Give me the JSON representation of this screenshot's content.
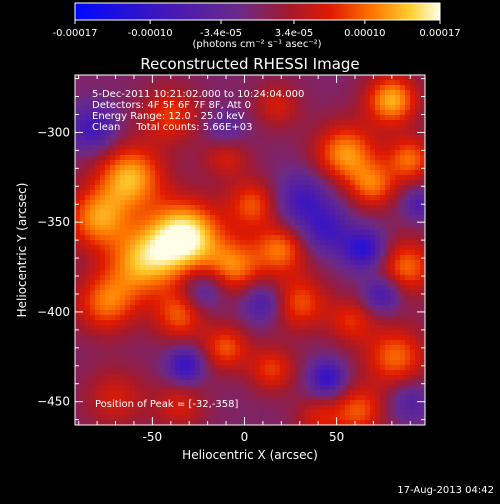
{
  "chart_data": {
    "type": "heatmap",
    "title": "Reconstructed RHESSI Image",
    "xlabel": "Heliocentric X (arcsec)",
    "ylabel": "Heliocentric Y (arcsec)",
    "xlim": [
      -92,
      98
    ],
    "ylim": [
      -463,
      -268
    ],
    "x_ticks": [
      -50,
      0,
      50
    ],
    "y_ticks": [
      -300,
      -350,
      -400,
      -450
    ],
    "colorbar": {
      "min": -0.00017,
      "max": 0.00017,
      "tick_values": [
        -0.00017,
        -0.0001,
        -3.4e-05,
        3.4e-05,
        0.0001,
        0.00017
      ],
      "tick_labels": [
        "-0.00017",
        "-0.00010",
        "-3.4e-05",
        "3.4e-05",
        "0.00010",
        "0.00017"
      ],
      "unit_label": "(photons cm⁻² s⁻¹ asec⁻²)"
    },
    "annotations": [
      " 5-Dec-2011 10:21:02.000 to 10:24:04.000",
      "Detectors: 4F 5F 6F 7F 8F, Att 0",
      "Energy Range: 12.0 - 25.0 keV",
      "Clean     Total counts: 5.66E+03"
    ],
    "peak_label": "Position of Peak = [-32,-358]",
    "peak": [
      -32,
      -358
    ],
    "grid": false,
    "sources": [
      {
        "x": -32,
        "y": -358,
        "value": 0.00017,
        "sigma": 14
      },
      {
        "x": -62,
        "y": -325,
        "value": 0.00013,
        "sigma": 13
      },
      {
        "x": -80,
        "y": -348,
        "value": 0.00011,
        "sigma": 12
      },
      {
        "x": -55,
        "y": -372,
        "value": 0.00012,
        "sigma": 14
      },
      {
        "x": -75,
        "y": -395,
        "value": 0.0001,
        "sigma": 12
      },
      {
        "x": -40,
        "y": -290,
        "value": 8e-05,
        "sigma": 11
      },
      {
        "x": -10,
        "y": -312,
        "value": 7e-05,
        "sigma": 9
      },
      {
        "x": 5,
        "y": -340,
        "value": 9e-05,
        "sigma": 10
      },
      {
        "x": -5,
        "y": -375,
        "value": 0.0001,
        "sigma": 11
      },
      {
        "x": 20,
        "y": -365,
        "value": 0.0001,
        "sigma": 10
      },
      {
        "x": 30,
        "y": -395,
        "value": 9e-05,
        "sigma": 11
      },
      {
        "x": -35,
        "y": -402,
        "value": 9e-05,
        "sigma": 10
      },
      {
        "x": -10,
        "y": -420,
        "value": 9e-05,
        "sigma": 9
      },
      {
        "x": 15,
        "y": -432,
        "value": 8e-05,
        "sigma": 9
      },
      {
        "x": 55,
        "y": -312,
        "value": 0.00012,
        "sigma": 12
      },
      {
        "x": 80,
        "y": -282,
        "value": 0.00013,
        "sigma": 10
      },
      {
        "x": 90,
        "y": -315,
        "value": 0.0001,
        "sigma": 9
      },
      {
        "x": 70,
        "y": -330,
        "value": 9e-05,
        "sigma": 9
      },
      {
        "x": 88,
        "y": -375,
        "value": 0.0001,
        "sigma": 11
      },
      {
        "x": 82,
        "y": -425,
        "value": 0.0001,
        "sigma": 12
      },
      {
        "x": 58,
        "y": -405,
        "value": 7e-05,
        "sigma": 9
      },
      {
        "x": 62,
        "y": -455,
        "value": 9e-05,
        "sigma": 10
      },
      {
        "x": -70,
        "y": -448,
        "value": 6e-05,
        "sigma": 12
      },
      {
        "x": -35,
        "y": -452,
        "value": 6e-05,
        "sigma": 10
      },
      {
        "x": 40,
        "y": -460,
        "value": 6e-05,
        "sigma": 9
      },
      {
        "x": 18,
        "y": -285,
        "value": 6e-05,
        "sigma": 9
      },
      {
        "x": -10,
        "y": -300,
        "value": -6e-05,
        "sigma": 8
      },
      {
        "x": 32,
        "y": -338,
        "value": -9e-05,
        "sigma": 11
      },
      {
        "x": 45,
        "y": -355,
        "value": -8e-05,
        "sigma": 9
      },
      {
        "x": 65,
        "y": -365,
        "value": -0.00012,
        "sigma": 8
      },
      {
        "x": 10,
        "y": -395,
        "value": -8e-05,
        "sigma": 8
      },
      {
        "x": -22,
        "y": -388,
        "value": -7e-05,
        "sigma": 8
      },
      {
        "x": -32,
        "y": -430,
        "value": -0.00011,
        "sigma": 7
      },
      {
        "x": 45,
        "y": -437,
        "value": -0.00011,
        "sigma": 7
      },
      {
        "x": -82,
        "y": -298,
        "value": -9e-05,
        "sigma": 9
      },
      {
        "x": 75,
        "y": -390,
        "value": -9e-05,
        "sigma": 7
      },
      {
        "x": 90,
        "y": -450,
        "value": -6e-05,
        "sigma": 8
      },
      {
        "x": 95,
        "y": -340,
        "value": -7e-05,
        "sigma": 6
      }
    ]
  },
  "footer": {
    "timestamp": "17-Aug-2013 04:42"
  },
  "colors": {
    "background": "#000000",
    "colormap": [
      {
        "stop": 0.0,
        "color": "#0008ff"
      },
      {
        "stop": 0.28,
        "color": "#4a1ab0"
      },
      {
        "stop": 0.45,
        "color": "#6a2a8a"
      },
      {
        "stop": 0.58,
        "color": "#a01a30"
      },
      {
        "stop": 0.7,
        "color": "#e01a00"
      },
      {
        "stop": 0.82,
        "color": "#ff7a00"
      },
      {
        "stop": 0.92,
        "color": "#ffd030"
      },
      {
        "stop": 1.0,
        "color": "#ffffe8"
      }
    ]
  }
}
